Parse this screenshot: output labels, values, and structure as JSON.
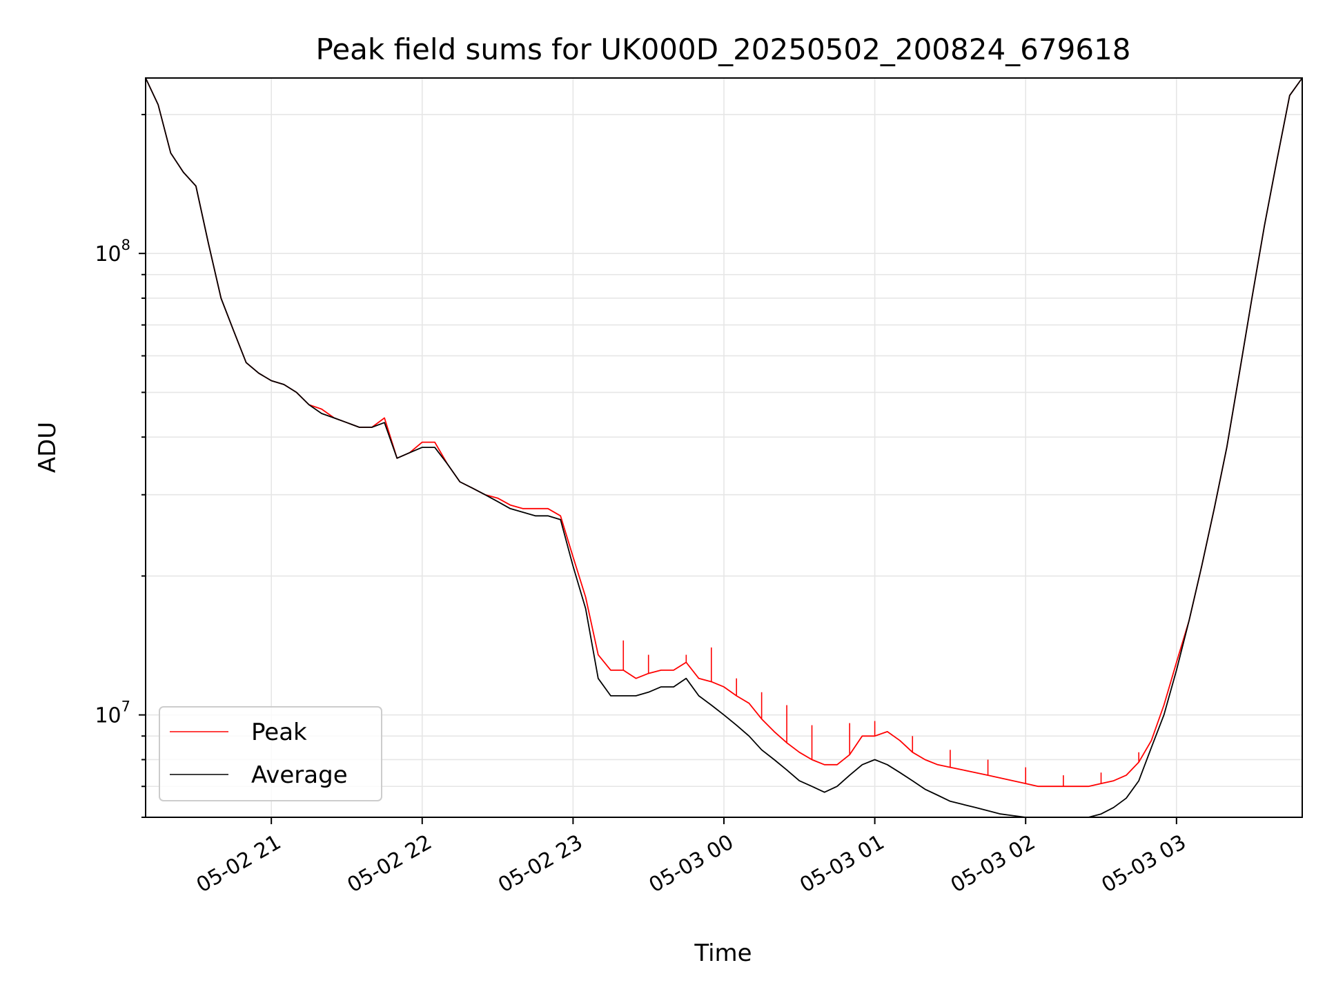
{
  "chart_data": {
    "type": "line",
    "title": "Peak field sums for UK000D_20250502_200824_679618",
    "xlabel": "Time",
    "ylabel": "ADU",
    "y_scale": "log",
    "grid": true,
    "grid_minor": true,
    "legend_position": "lower-left",
    "x_range": [
      "2025-05-02 20:10",
      "2025-05-03 03:50"
    ],
    "ylim": [
      6000000,
      240000000
    ],
    "x_ticks": [
      "05-02 21",
      "05-02 22",
      "05-02 23",
      "05-03 00",
      "05-03 01",
      "05-03 02",
      "05-03 03"
    ],
    "x_tick_times": [
      "2025-05-02 21:00",
      "2025-05-02 22:00",
      "2025-05-02 23:00",
      "2025-05-03 00:00",
      "2025-05-03 01:00",
      "2025-05-03 02:00",
      "2025-05-03 03:00"
    ],
    "y_ticks": [
      {
        "value": 10000000,
        "base": "10",
        "exp": "7"
      },
      {
        "value": 100000000,
        "base": "10",
        "exp": "8"
      }
    ],
    "series": [
      {
        "name": "Peak",
        "color": "#ff0000",
        "x": [
          "2025-05-02 20:10",
          "2025-05-02 20:15",
          "2025-05-02 20:20",
          "2025-05-02 20:25",
          "2025-05-02 20:30",
          "2025-05-02 20:35",
          "2025-05-02 20:40",
          "2025-05-02 20:45",
          "2025-05-02 20:50",
          "2025-05-02 20:55",
          "2025-05-02 21:00",
          "2025-05-02 21:05",
          "2025-05-02 21:10",
          "2025-05-02 21:15",
          "2025-05-02 21:20",
          "2025-05-02 21:25",
          "2025-05-02 21:30",
          "2025-05-02 21:35",
          "2025-05-02 21:40",
          "2025-05-02 21:45",
          "2025-05-02 21:50",
          "2025-05-02 21:55",
          "2025-05-02 22:00",
          "2025-05-02 22:05",
          "2025-05-02 22:10",
          "2025-05-02 22:15",
          "2025-05-02 22:20",
          "2025-05-02 22:25",
          "2025-05-02 22:30",
          "2025-05-02 22:35",
          "2025-05-02 22:40",
          "2025-05-02 22:45",
          "2025-05-02 22:50",
          "2025-05-02 22:55",
          "2025-05-02 23:00",
          "2025-05-02 23:05",
          "2025-05-02 23:10",
          "2025-05-02 23:15",
          "2025-05-02 23:20",
          "2025-05-02 23:25",
          "2025-05-02 23:30",
          "2025-05-02 23:35",
          "2025-05-02 23:40",
          "2025-05-02 23:45",
          "2025-05-02 23:50",
          "2025-05-02 23:55",
          "2025-05-03 00:00",
          "2025-05-03 00:05",
          "2025-05-03 00:10",
          "2025-05-03 00:15",
          "2025-05-03 00:20",
          "2025-05-03 00:25",
          "2025-05-03 00:30",
          "2025-05-03 00:35",
          "2025-05-03 00:40",
          "2025-05-03 00:45",
          "2025-05-03 00:50",
          "2025-05-03 00:55",
          "2025-05-03 01:00",
          "2025-05-03 01:05",
          "2025-05-03 01:10",
          "2025-05-03 01:15",
          "2025-05-03 01:20",
          "2025-05-03 01:25",
          "2025-05-03 01:30",
          "2025-05-03 01:35",
          "2025-05-03 01:40",
          "2025-05-03 01:45",
          "2025-05-03 01:50",
          "2025-05-03 01:55",
          "2025-05-03 02:00",
          "2025-05-03 02:05",
          "2025-05-03 02:10",
          "2025-05-03 02:15",
          "2025-05-03 02:20",
          "2025-05-03 02:25",
          "2025-05-03 02:30",
          "2025-05-03 02:35",
          "2025-05-03 02:40",
          "2025-05-03 02:45",
          "2025-05-03 02:50",
          "2025-05-03 02:55",
          "2025-05-03 03:00",
          "2025-05-03 03:05",
          "2025-05-03 03:10",
          "2025-05-03 03:15",
          "2025-05-03 03:20",
          "2025-05-03 03:25",
          "2025-05-03 03:30",
          "2025-05-03 03:35",
          "2025-05-03 03:40",
          "2025-05-03 03:45",
          "2025-05-03 03:50"
        ],
        "values": [
          240000000,
          210000000,
          165000000,
          150000000,
          140000000,
          105000000,
          80000000,
          68000000,
          58000000,
          55000000,
          53000000,
          52000000,
          50000000,
          47000000,
          46000000,
          44000000,
          43000000,
          42000000,
          42000000,
          44000000,
          36000000,
          37000000,
          39000000,
          39000000,
          35000000,
          32000000,
          31000000,
          30000000,
          29500000,
          28500000,
          28000000,
          28000000,
          28000000,
          27000000,
          22000000,
          18000000,
          13500000,
          12500000,
          12500000,
          12000000,
          12300000,
          12500000,
          12500000,
          13000000,
          12000000,
          11800000,
          11500000,
          11000000,
          10600000,
          9800000,
          9200000,
          8700000,
          8300000,
          8000000,
          7800000,
          7800000,
          8200000,
          9000000,
          9000000,
          9200000,
          8800000,
          8300000,
          8000000,
          7800000,
          7700000,
          7600000,
          7500000,
          7400000,
          7300000,
          7200000,
          7100000,
          7000000,
          7000000,
          7000000,
          7000000,
          7000000,
          7100000,
          7200000,
          7400000,
          7900000,
          8800000,
          10500000,
          13000000,
          16000000,
          21000000,
          28000000,
          38000000,
          55000000,
          80000000,
          115000000,
          160000000,
          220000000,
          240000000
        ],
        "spikes": [
          [
            "2025-05-02 23:20",
            14500000
          ],
          [
            "2025-05-02 23:30",
            13500000
          ],
          [
            "2025-05-02 23:45",
            13500000
          ],
          [
            "2025-05-02 23:55",
            14000000
          ],
          [
            "2025-05-03 00:05",
            12000000
          ],
          [
            "2025-05-03 00:15",
            11200000
          ],
          [
            "2025-05-03 00:25",
            10500000
          ],
          [
            "2025-05-03 00:35",
            9500000
          ],
          [
            "2025-05-03 00:50",
            9600000
          ],
          [
            "2025-05-03 01:00",
            9700000
          ],
          [
            "2025-05-03 01:15",
            9000000
          ],
          [
            "2025-05-03 01:30",
            8400000
          ],
          [
            "2025-05-03 01:45",
            8000000
          ],
          [
            "2025-05-03 02:00",
            7700000
          ],
          [
            "2025-05-03 02:15",
            7400000
          ],
          [
            "2025-05-03 02:30",
            7500000
          ],
          [
            "2025-05-03 02:45",
            8300000
          ]
        ]
      },
      {
        "name": "Average",
        "color": "#000000",
        "x": [
          "2025-05-02 20:10",
          "2025-05-02 20:15",
          "2025-05-02 20:20",
          "2025-05-02 20:25",
          "2025-05-02 20:30",
          "2025-05-02 20:35",
          "2025-05-02 20:40",
          "2025-05-02 20:45",
          "2025-05-02 20:50",
          "2025-05-02 20:55",
          "2025-05-02 21:00",
          "2025-05-02 21:05",
          "2025-05-02 21:10",
          "2025-05-02 21:15",
          "2025-05-02 21:20",
          "2025-05-02 21:25",
          "2025-05-02 21:30",
          "2025-05-02 21:35",
          "2025-05-02 21:40",
          "2025-05-02 21:45",
          "2025-05-02 21:50",
          "2025-05-02 21:55",
          "2025-05-02 22:00",
          "2025-05-02 22:05",
          "2025-05-02 22:10",
          "2025-05-02 22:15",
          "2025-05-02 22:20",
          "2025-05-02 22:25",
          "2025-05-02 22:30",
          "2025-05-02 22:35",
          "2025-05-02 22:40",
          "2025-05-02 22:45",
          "2025-05-02 22:50",
          "2025-05-02 22:55",
          "2025-05-02 23:00",
          "2025-05-02 23:05",
          "2025-05-02 23:10",
          "2025-05-02 23:15",
          "2025-05-02 23:20",
          "2025-05-02 23:25",
          "2025-05-02 23:30",
          "2025-05-02 23:35",
          "2025-05-02 23:40",
          "2025-05-02 23:45",
          "2025-05-02 23:50",
          "2025-05-02 23:55",
          "2025-05-03 00:00",
          "2025-05-03 00:05",
          "2025-05-03 00:10",
          "2025-05-03 00:15",
          "2025-05-03 00:20",
          "2025-05-03 00:25",
          "2025-05-03 00:30",
          "2025-05-03 00:35",
          "2025-05-03 00:40",
          "2025-05-03 00:45",
          "2025-05-03 00:50",
          "2025-05-03 00:55",
          "2025-05-03 01:00",
          "2025-05-03 01:05",
          "2025-05-03 01:10",
          "2025-05-03 01:15",
          "2025-05-03 01:20",
          "2025-05-03 01:25",
          "2025-05-03 01:30",
          "2025-05-03 01:35",
          "2025-05-03 01:40",
          "2025-05-03 01:45",
          "2025-05-03 01:50",
          "2025-05-03 01:55",
          "2025-05-03 02:00",
          "2025-05-03 02:05",
          "2025-05-03 02:10",
          "2025-05-03 02:15",
          "2025-05-03 02:20",
          "2025-05-03 02:25",
          "2025-05-03 02:30",
          "2025-05-03 02:35",
          "2025-05-03 02:40",
          "2025-05-03 02:45",
          "2025-05-03 02:50",
          "2025-05-03 02:55",
          "2025-05-03 03:00",
          "2025-05-03 03:05",
          "2025-05-03 03:10",
          "2025-05-03 03:15",
          "2025-05-03 03:20",
          "2025-05-03 03:25",
          "2025-05-03 03:30",
          "2025-05-03 03:35",
          "2025-05-03 03:40",
          "2025-05-03 03:45",
          "2025-05-03 03:50"
        ],
        "values": [
          240000000,
          210000000,
          165000000,
          150000000,
          140000000,
          105000000,
          80000000,
          68000000,
          58000000,
          55000000,
          53000000,
          52000000,
          50000000,
          47000000,
          45000000,
          44000000,
          43000000,
          42000000,
          42000000,
          43000000,
          36000000,
          37000000,
          38000000,
          38000000,
          35000000,
          32000000,
          31000000,
          30000000,
          29000000,
          28000000,
          27500000,
          27000000,
          27000000,
          26500000,
          21000000,
          17000000,
          12000000,
          11000000,
          11000000,
          11000000,
          11200000,
          11500000,
          11500000,
          12000000,
          11000000,
          10500000,
          10000000,
          9500000,
          9000000,
          8400000,
          8000000,
          7600000,
          7200000,
          7000000,
          6800000,
          7000000,
          7400000,
          7800000,
          8000000,
          7800000,
          7500000,
          7200000,
          6900000,
          6700000,
          6500000,
          6400000,
          6300000,
          6200000,
          6100000,
          6050000,
          6000000,
          5950000,
          5900000,
          5950000,
          6000000,
          6000000,
          6100000,
          6300000,
          6600000,
          7200000,
          8500000,
          10000000,
          12500000,
          16000000,
          21000000,
          28000000,
          38000000,
          55000000,
          80000000,
          115000000,
          160000000,
          220000000,
          240000000
        ]
      }
    ]
  }
}
